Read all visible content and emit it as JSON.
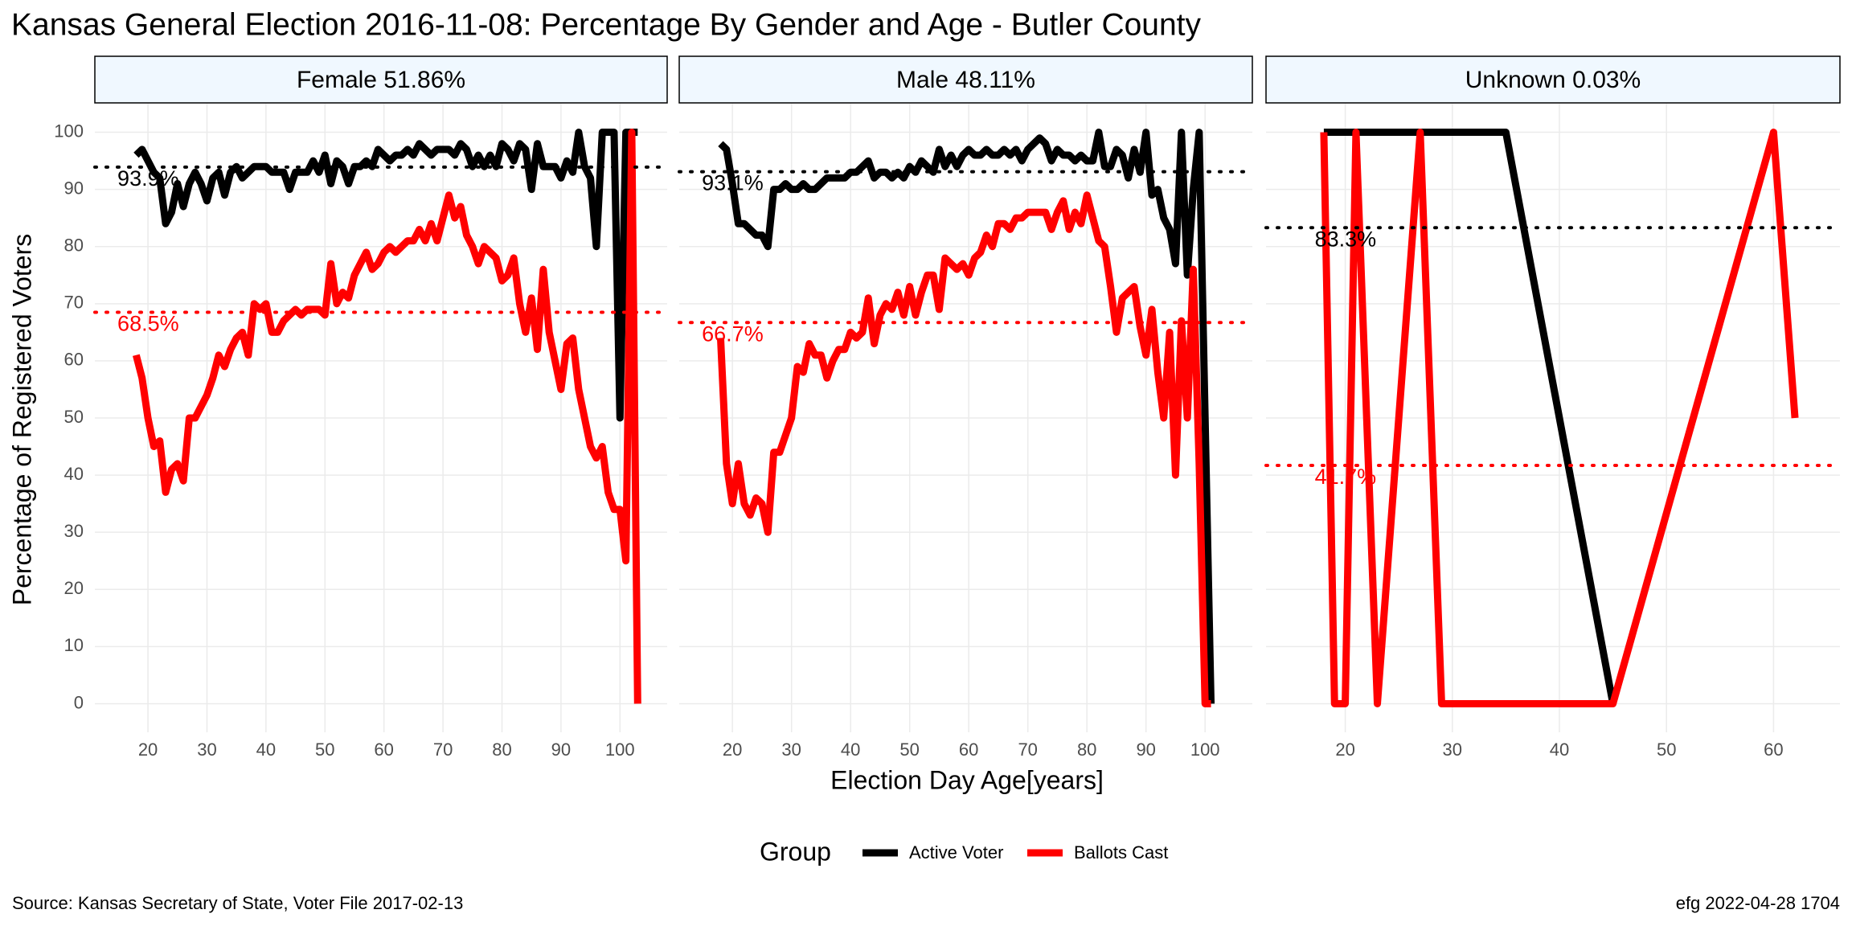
{
  "title": "Kansas General Election 2016-11-08:  Percentage By Gender and Age - Butler County",
  "y_label": "Percentage of Registered Voters",
  "x_label": "Election Day Age[years]",
  "legend_title": "Group",
  "source": "Source:  Kansas Secretary of State, Voter File  2017-02-13",
  "credit": "efg 2022-04-28 1704",
  "chart_data": [
    {
      "type": "line",
      "title": "Female 51.86%",
      "x": [
        18,
        19,
        20,
        21,
        22,
        23,
        24,
        25,
        26,
        27,
        28,
        29,
        30,
        31,
        32,
        33,
        34,
        35,
        36,
        37,
        38,
        39,
        40,
        41,
        42,
        43,
        44,
        45,
        46,
        47,
        48,
        49,
        50,
        51,
        52,
        53,
        54,
        55,
        56,
        57,
        58,
        59,
        60,
        61,
        62,
        63,
        64,
        65,
        66,
        67,
        68,
        69,
        70,
        71,
        72,
        73,
        74,
        75,
        76,
        77,
        78,
        79,
        80,
        81,
        82,
        83,
        84,
        85,
        86,
        87,
        88,
        89,
        90,
        91,
        92,
        93,
        94,
        95,
        96,
        97,
        98,
        99,
        100,
        101,
        102,
        103
      ],
      "series": [
        {
          "name": "Active Voter",
          "color": "#000000",
          "values": [
            96,
            97,
            95,
            93,
            92,
            84,
            86,
            91,
            87,
            91,
            93,
            91,
            88,
            92,
            93,
            89,
            93,
            94,
            92,
            93,
            94,
            94,
            94,
            93,
            93,
            93,
            90,
            93,
            93,
            93,
            95,
            93,
            96,
            91,
            95,
            94,
            91,
            94,
            94,
            95,
            94,
            97,
            96,
            95,
            96,
            96,
            97,
            96,
            98,
            97,
            96,
            97,
            97,
            97,
            96,
            98,
            97,
            94,
            96,
            94,
            96,
            94,
            98,
            97,
            95,
            98,
            97,
            90,
            98,
            94,
            94,
            94,
            92,
            95,
            93,
            100,
            94,
            92,
            80,
            100,
            100,
            100,
            50,
            100,
            100,
            100
          ]
        },
        {
          "name": "Ballots Cast",
          "color": "#ff0000",
          "values": [
            61,
            57,
            50,
            45,
            46,
            37,
            41,
            42,
            39,
            50,
            50,
            52,
            54,
            57,
            61,
            59,
            62,
            64,
            65,
            61,
            70,
            69,
            70,
            65,
            65,
            67,
            68,
            69,
            68,
            69,
            69,
            69,
            68,
            77,
            70,
            72,
            71,
            75,
            77,
            79,
            76,
            77,
            79,
            80,
            79,
            80,
            81,
            81,
            83,
            81,
            84,
            81,
            85,
            89,
            85,
            87,
            82,
            80,
            77,
            80,
            79,
            78,
            74,
            75,
            78,
            70,
            65,
            71,
            62,
            76,
            65,
            60,
            55,
            63,
            64,
            55,
            50,
            45,
            43,
            45,
            37,
            34,
            34,
            25,
            100,
            0
          ]
        }
      ],
      "hlines": [
        {
          "value": 93.9,
          "label": "93.9%",
          "color": "#000000"
        },
        {
          "value": 68.5,
          "label": "68.5%",
          "color": "#ff0000"
        }
      ],
      "xlim": [
        11,
        108
      ],
      "xticks": [
        20,
        30,
        40,
        50,
        60,
        70,
        80,
        90,
        100
      ],
      "ylim": [
        -5,
        105
      ],
      "yticks": [
        0,
        10,
        20,
        30,
        40,
        50,
        60,
        70,
        80,
        90,
        100
      ],
      "grid": true
    },
    {
      "type": "line",
      "title": "Male 48.11%",
      "x": [
        18,
        19,
        20,
        21,
        22,
        23,
        24,
        25,
        26,
        27,
        28,
        29,
        30,
        31,
        32,
        33,
        34,
        35,
        36,
        37,
        38,
        39,
        40,
        41,
        42,
        43,
        44,
        45,
        46,
        47,
        48,
        49,
        50,
        51,
        52,
        53,
        54,
        55,
        56,
        57,
        58,
        59,
        60,
        61,
        62,
        63,
        64,
        65,
        66,
        67,
        68,
        69,
        70,
        71,
        72,
        73,
        74,
        75,
        76,
        77,
        78,
        79,
        80,
        81,
        82,
        83,
        84,
        85,
        86,
        87,
        88,
        89,
        90,
        91,
        92,
        93,
        94,
        95,
        96,
        97,
        98,
        99,
        100,
        101
      ],
      "series": [
        {
          "color": "#000000",
          "values": [
            98,
            97,
            91,
            84,
            84,
            83,
            82,
            82,
            80,
            90,
            90,
            91,
            90,
            90,
            91,
            90,
            90,
            91,
            92,
            92,
            92,
            92,
            93,
            93,
            94,
            95,
            92,
            93,
            93,
            92,
            93,
            92,
            94,
            93,
            95,
            94,
            93,
            97,
            94,
            96,
            94,
            96,
            97,
            96,
            96,
            97,
            96,
            96,
            97,
            96,
            97,
            95,
            97,
            98,
            99,
            98,
            95,
            97,
            96,
            96,
            95,
            96,
            95,
            95,
            100,
            94,
            94,
            97,
            96,
            92,
            97,
            93,
            100,
            89,
            90,
            85,
            83,
            77,
            100,
            75,
            90,
            100,
            50,
            0
          ]
        },
        {
          "color": "#ff0000",
          "values": [
            64,
            42,
            35,
            42,
            35,
            33,
            36,
            35,
            30,
            44,
            44,
            47,
            50,
            59,
            58,
            63,
            61,
            61,
            57,
            60,
            62,
            62,
            65,
            64,
            65,
            71,
            63,
            68,
            70,
            69,
            72,
            68,
            73,
            68,
            72,
            75,
            75,
            69,
            78,
            77,
            76,
            77,
            75,
            78,
            79,
            82,
            80,
            84,
            84,
            83,
            85,
            85,
            86,
            86,
            86,
            86,
            83,
            86,
            88,
            83,
            86,
            84,
            89,
            85,
            81,
            80,
            73,
            65,
            71,
            72,
            73,
            66,
            61,
            69,
            58,
            50,
            65,
            40,
            67,
            50,
            76,
            42,
            0,
            0
          ]
        }
      ],
      "hlines": [
        {
          "value": 93.1,
          "label": "93.1%",
          "color": "#000000"
        },
        {
          "value": 66.7,
          "label": "66.7%",
          "color": "#ff0000"
        }
      ],
      "xlim": [
        11,
        108
      ],
      "xticks": [
        20,
        30,
        40,
        50,
        60,
        70,
        80,
        90,
        100
      ],
      "ylim": [
        -5,
        105
      ],
      "yticks": [
        0,
        10,
        20,
        30,
        40,
        50,
        60,
        70,
        80,
        90,
        100
      ],
      "grid": true
    },
    {
      "type": "line",
      "title": "Unknown 0.03%",
      "x": [
        18,
        19,
        20,
        21,
        23,
        27,
        29,
        35,
        45,
        60,
        62
      ],
      "series": [
        {
          "color": "#000000",
          "values": [
            100,
            100,
            100,
            100,
            100,
            100,
            100,
            100,
            0,
            null,
            null
          ]
        },
        {
          "color": "#ff0000",
          "values": [
            100,
            0,
            0,
            100,
            0,
            100,
            0,
            0,
            0,
            100,
            50
          ]
        }
      ],
      "hlines": [
        {
          "value": 83.3,
          "label": "83.3%",
          "color": "#000000"
        },
        {
          "value": 41.7,
          "label": "41.7%",
          "color": "#ff0000"
        }
      ],
      "xlim": [
        12.6,
        66.2
      ],
      "xticks": [
        20,
        30,
        40,
        50,
        60
      ],
      "ylim": [
        -5,
        105
      ],
      "yticks": [
        0,
        10,
        20,
        30,
        40,
        50,
        60,
        70,
        80,
        90,
        100
      ],
      "grid": true
    }
  ]
}
